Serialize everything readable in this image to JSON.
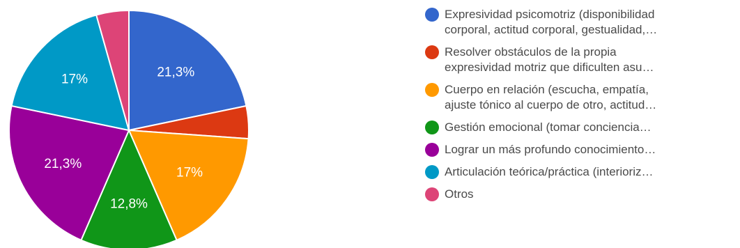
{
  "chart_data": {
    "type": "pie",
    "slices": [
      {
        "label": "Expresividad psicomotriz (disponibilidad\ncorporal, actitud corporal, gestualidad,…",
        "value": 21.3,
        "value_label": "21,3%",
        "color": "#3366cc"
      },
      {
        "label": "Resolver obstáculos de la propia\nexpresividad motriz que dificulten asu…",
        "value": 4.3,
        "value_label": "",
        "color": "#dc3912"
      },
      {
        "label": "Cuerpo en relación (escucha, empatía,\najuste tónico al cuerpo de otro, actitud…",
        "value": 17,
        "value_label": "17%",
        "color": "#ff9900"
      },
      {
        "label": "Gestión emocional (tomar conciencia…",
        "value": 12.8,
        "value_label": "12,8%",
        "color": "#109618"
      },
      {
        "label": "Lograr un más profundo conocimiento…",
        "value": 21.3,
        "value_label": "21,3%",
        "color": "#990099"
      },
      {
        "label": "Articulación teórica/práctica (interioriz…",
        "value": 17,
        "value_label": "17%",
        "color": "#0099c6"
      },
      {
        "label": "Otros",
        "value": 4.3,
        "value_label": "",
        "color": "#dd4477"
      }
    ],
    "legend_position": "right"
  }
}
